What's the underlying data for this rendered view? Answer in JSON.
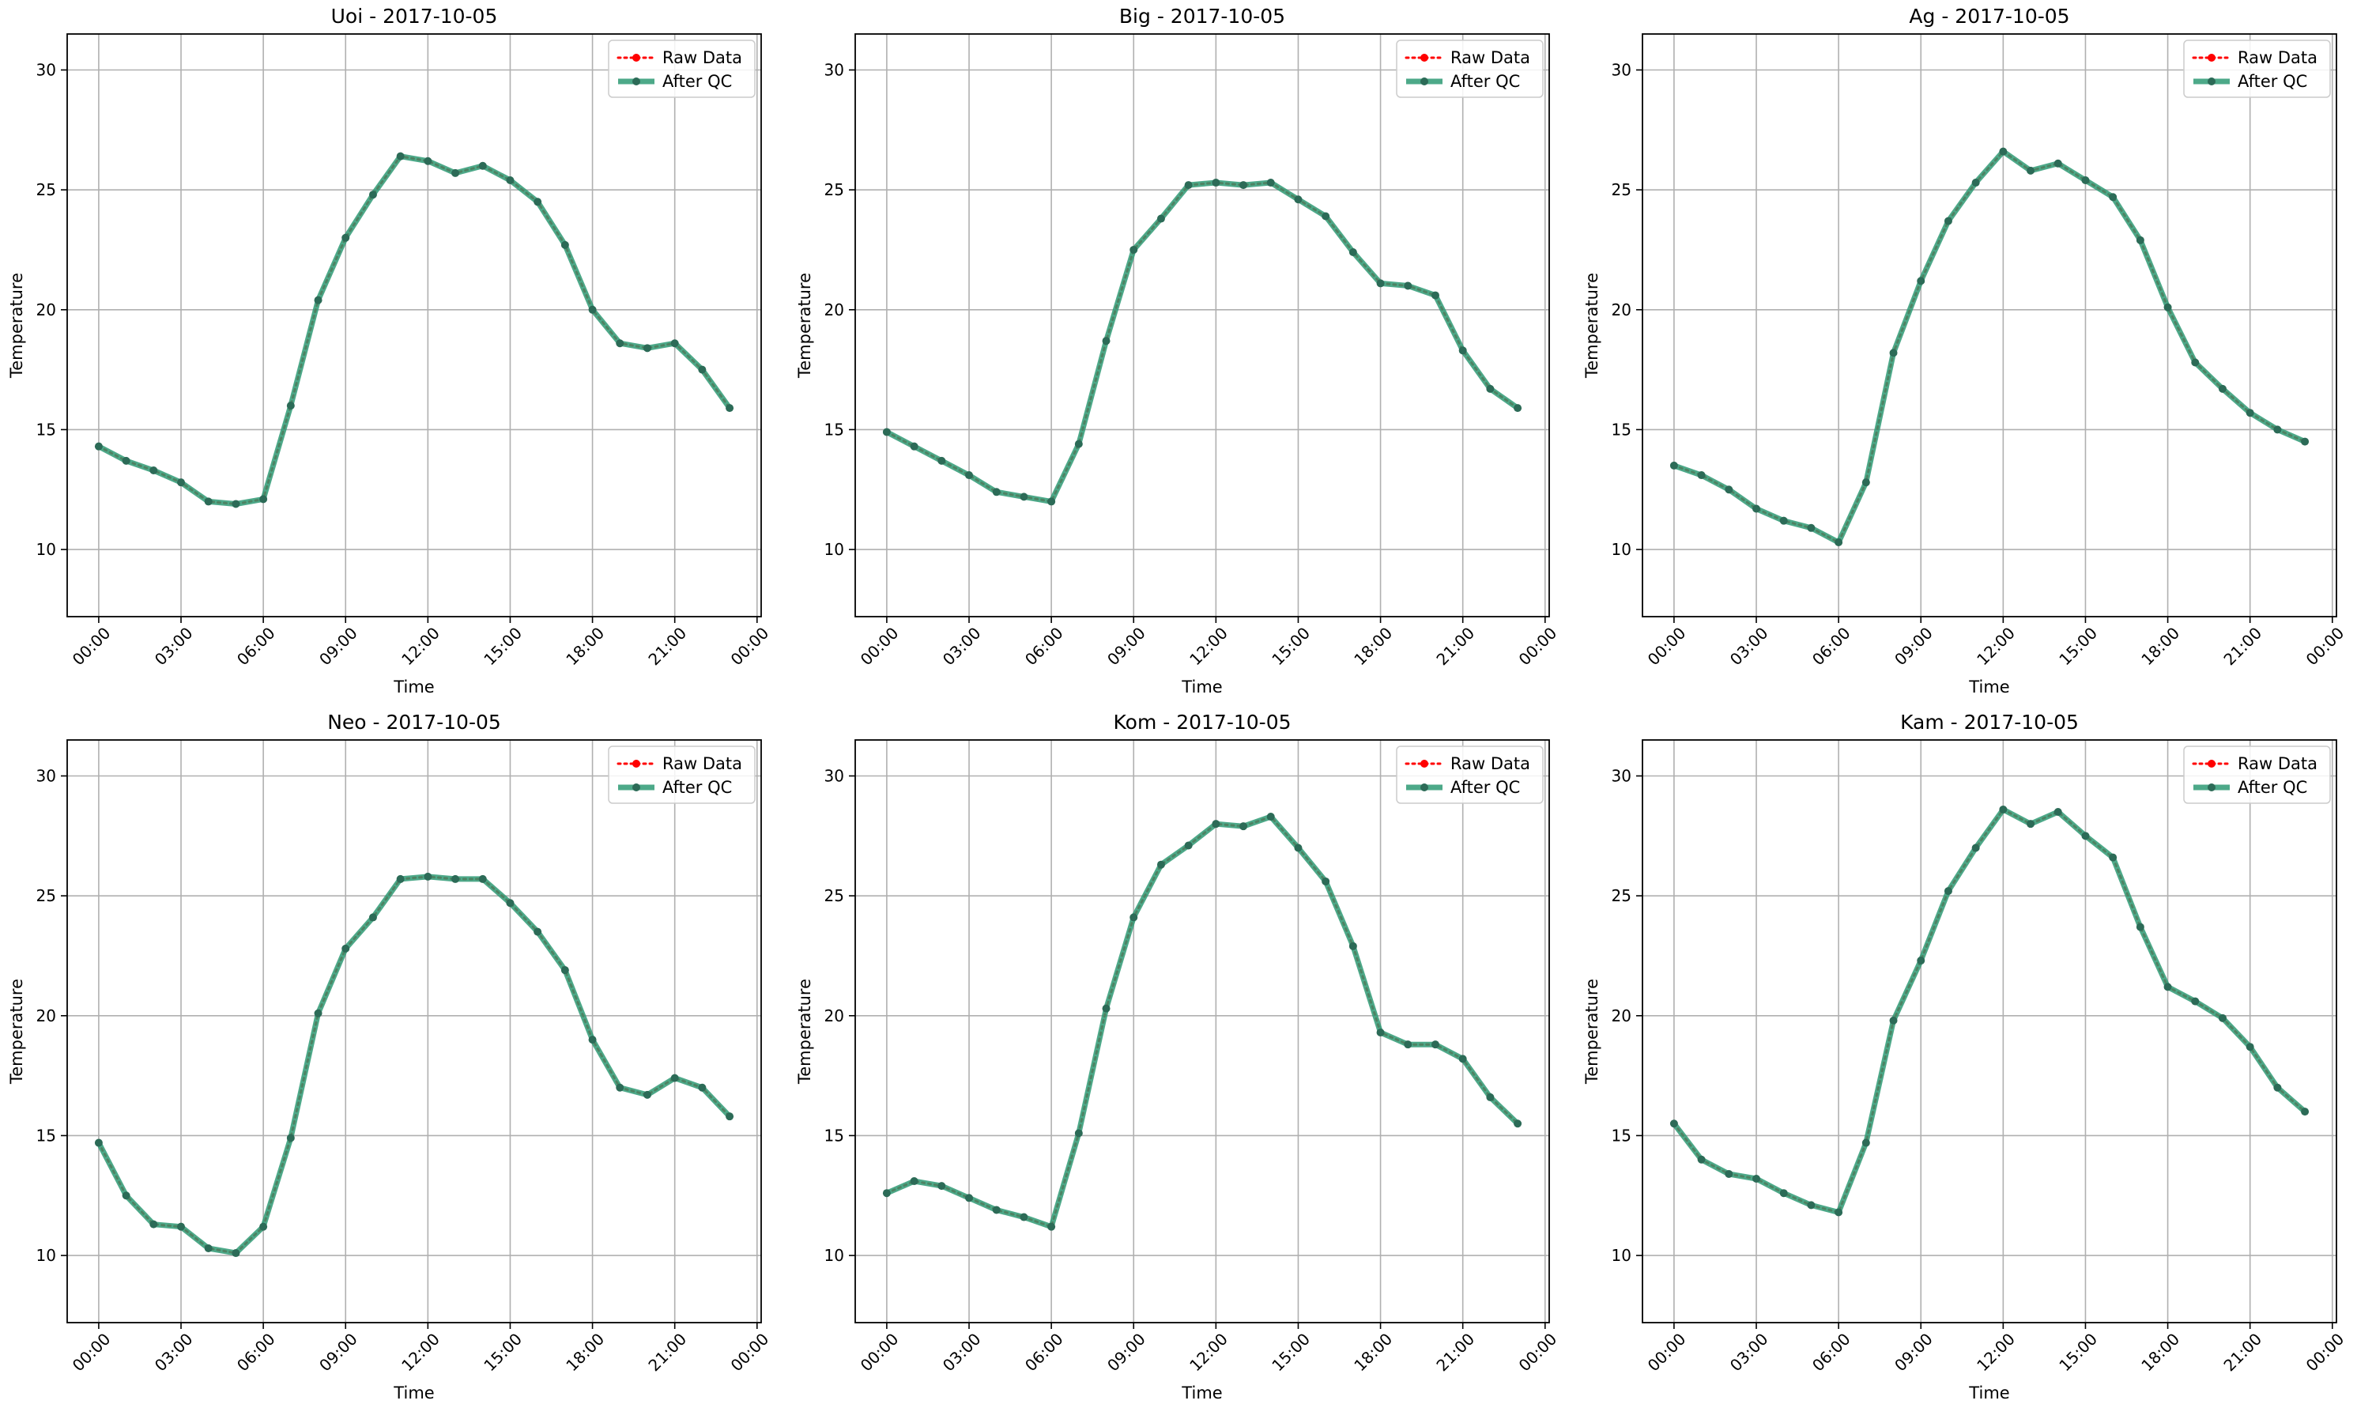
{
  "chart_data": [
    {
      "type": "line",
      "title": "Uoi - 2017-10-05",
      "xlabel": "Time",
      "ylabel": "Temperature",
      "x": [
        0,
        1,
        2,
        3,
        4,
        5,
        6,
        7,
        8,
        9,
        10,
        11,
        12,
        13,
        14,
        15,
        16,
        17,
        18,
        19,
        20,
        21,
        22,
        23
      ],
      "xticks": [
        "00:00",
        "03:00",
        "06:00",
        "09:00",
        "12:00",
        "15:00",
        "18:00",
        "21:00",
        "00:00"
      ],
      "yticks": [
        10,
        15,
        20,
        25,
        30
      ],
      "ylim": [
        7.2,
        31.5
      ],
      "grid": true,
      "legend_position": "top-right",
      "series": [
        {
          "name": "Raw Data",
          "color": "#ff0000",
          "style": "dotted-markers",
          "values": [
            14.3,
            13.7,
            13.3,
            12.8,
            12.0,
            11.9,
            12.1,
            16.0,
            20.4,
            23.0,
            24.8,
            26.4,
            26.2,
            25.7,
            26.0,
            25.4,
            24.5,
            22.7,
            20.0,
            18.6,
            18.4,
            18.6,
            17.5,
            15.9
          ]
        },
        {
          "name": "After QC",
          "color": "#2e9a74",
          "style": "solid-markers",
          "values": [
            14.3,
            13.7,
            13.3,
            12.8,
            12.0,
            11.9,
            12.1,
            16.0,
            20.4,
            23.0,
            24.8,
            26.4,
            26.2,
            25.7,
            26.0,
            25.4,
            24.5,
            22.7,
            20.0,
            18.6,
            18.4,
            18.6,
            17.5,
            15.9
          ]
        }
      ]
    },
    {
      "type": "line",
      "title": "Big - 2017-10-05",
      "xlabel": "Time",
      "ylabel": "Temperature",
      "x": [
        0,
        1,
        2,
        3,
        4,
        5,
        6,
        7,
        8,
        9,
        10,
        11,
        12,
        13,
        14,
        15,
        16,
        17,
        18,
        19,
        20,
        21,
        22,
        23
      ],
      "xticks": [
        "00:00",
        "03:00",
        "06:00",
        "09:00",
        "12:00",
        "15:00",
        "18:00",
        "21:00",
        "00:00"
      ],
      "yticks": [
        10,
        15,
        20,
        25,
        30
      ],
      "ylim": [
        7.2,
        31.5
      ],
      "grid": true,
      "legend_position": "top-right",
      "series": [
        {
          "name": "Raw Data",
          "color": "#ff0000",
          "style": "dotted-markers",
          "values": [
            14.9,
            14.3,
            13.7,
            13.1,
            12.4,
            12.2,
            12.0,
            14.4,
            18.7,
            22.5,
            23.8,
            25.2,
            25.3,
            25.2,
            25.3,
            24.6,
            23.9,
            22.4,
            21.1,
            21.0,
            20.6,
            18.3,
            16.7,
            15.9
          ]
        },
        {
          "name": "After QC",
          "color": "#2e9a74",
          "style": "solid-markers",
          "values": [
            14.9,
            14.3,
            13.7,
            13.1,
            12.4,
            12.2,
            12.0,
            14.4,
            18.7,
            22.5,
            23.8,
            25.2,
            25.3,
            25.2,
            25.3,
            24.6,
            23.9,
            22.4,
            21.1,
            21.0,
            20.6,
            18.3,
            16.7,
            15.9
          ]
        }
      ]
    },
    {
      "type": "line",
      "title": "Ag - 2017-10-05",
      "xlabel": "Time",
      "ylabel": "Temperature",
      "x": [
        0,
        1,
        2,
        3,
        4,
        5,
        6,
        7,
        8,
        9,
        10,
        11,
        12,
        13,
        14,
        15,
        16,
        17,
        18,
        19,
        20,
        21,
        22,
        23
      ],
      "xticks": [
        "00:00",
        "03:00",
        "06:00",
        "09:00",
        "12:00",
        "15:00",
        "18:00",
        "21:00",
        "00:00"
      ],
      "yticks": [
        10,
        15,
        20,
        25,
        30
      ],
      "ylim": [
        7.2,
        31.5
      ],
      "grid": true,
      "legend_position": "top-right",
      "series": [
        {
          "name": "Raw Data",
          "color": "#ff0000",
          "style": "dotted-markers",
          "values": [
            13.5,
            13.1,
            12.5,
            11.7,
            11.2,
            10.9,
            10.3,
            12.8,
            18.2,
            21.2,
            23.7,
            25.3,
            26.6,
            25.8,
            26.1,
            25.4,
            24.7,
            22.9,
            20.1,
            17.8,
            16.7,
            15.7,
            15.0,
            14.5
          ]
        },
        {
          "name": "After QC",
          "color": "#2e9a74",
          "style": "solid-markers",
          "values": [
            13.5,
            13.1,
            12.5,
            11.7,
            11.2,
            10.9,
            10.3,
            12.8,
            18.2,
            21.2,
            23.7,
            25.3,
            26.6,
            25.8,
            26.1,
            25.4,
            24.7,
            22.9,
            20.1,
            17.8,
            16.7,
            15.7,
            15.0,
            14.5
          ]
        }
      ]
    },
    {
      "type": "line",
      "title": "Neo - 2017-10-05",
      "xlabel": "Time",
      "ylabel": "Temperature",
      "x": [
        0,
        1,
        2,
        3,
        4,
        5,
        6,
        7,
        8,
        9,
        10,
        11,
        12,
        13,
        14,
        15,
        16,
        17,
        18,
        19,
        20,
        21,
        22,
        23
      ],
      "xticks": [
        "00:00",
        "03:00",
        "06:00",
        "09:00",
        "12:00",
        "15:00",
        "18:00",
        "21:00",
        "00:00"
      ],
      "yticks": [
        10,
        15,
        20,
        25,
        30
      ],
      "ylim": [
        7.2,
        31.5
      ],
      "grid": true,
      "legend_position": "top-right",
      "series": [
        {
          "name": "Raw Data",
          "color": "#ff0000",
          "style": "dotted-markers",
          "values": [
            14.7,
            12.5,
            11.3,
            11.2,
            10.3,
            10.1,
            11.2,
            14.9,
            20.1,
            22.8,
            24.1,
            25.7,
            25.8,
            25.7,
            25.7,
            24.7,
            23.5,
            21.9,
            19.0,
            17.0,
            16.7,
            17.4,
            17.0,
            15.8
          ]
        },
        {
          "name": "After QC",
          "color": "#2e9a74",
          "style": "solid-markers",
          "values": [
            14.7,
            12.5,
            11.3,
            11.2,
            10.3,
            10.1,
            11.2,
            14.9,
            20.1,
            22.8,
            24.1,
            25.7,
            25.8,
            25.7,
            25.7,
            24.7,
            23.5,
            21.9,
            19.0,
            17.0,
            16.7,
            17.4,
            17.0,
            15.8
          ]
        }
      ]
    },
    {
      "type": "line",
      "title": "Kom - 2017-10-05",
      "xlabel": "Time",
      "ylabel": "Temperature",
      "x": [
        0,
        1,
        2,
        3,
        4,
        5,
        6,
        7,
        8,
        9,
        10,
        11,
        12,
        13,
        14,
        15,
        16,
        17,
        18,
        19,
        20,
        21,
        22,
        23
      ],
      "xticks": [
        "00:00",
        "03:00",
        "06:00",
        "09:00",
        "12:00",
        "15:00",
        "18:00",
        "21:00",
        "00:00"
      ],
      "yticks": [
        10,
        15,
        20,
        25,
        30
      ],
      "ylim": [
        7.2,
        31.5
      ],
      "grid": true,
      "legend_position": "top-right",
      "series": [
        {
          "name": "Raw Data",
          "color": "#ff0000",
          "style": "dotted-markers",
          "values": [
            12.6,
            13.1,
            12.9,
            12.4,
            11.9,
            11.6,
            11.2,
            15.1,
            20.3,
            24.1,
            26.3,
            27.1,
            28.0,
            27.9,
            28.3,
            27.0,
            25.6,
            22.9,
            19.3,
            18.8,
            18.8,
            18.2,
            16.6,
            15.5
          ]
        },
        {
          "name": "After QC",
          "color": "#2e9a74",
          "style": "solid-markers",
          "values": [
            12.6,
            13.1,
            12.9,
            12.4,
            11.9,
            11.6,
            11.2,
            15.1,
            20.3,
            24.1,
            26.3,
            27.1,
            28.0,
            27.9,
            28.3,
            27.0,
            25.6,
            22.9,
            19.3,
            18.8,
            18.8,
            18.2,
            16.6,
            15.5
          ]
        }
      ]
    },
    {
      "type": "line",
      "title": "Kam - 2017-10-05",
      "xlabel": "Time",
      "ylabel": "Temperature",
      "x": [
        0,
        1,
        2,
        3,
        4,
        5,
        6,
        7,
        8,
        9,
        10,
        11,
        12,
        13,
        14,
        15,
        16,
        17,
        18,
        19,
        20,
        21,
        22,
        23
      ],
      "xticks": [
        "00:00",
        "03:00",
        "06:00",
        "09:00",
        "12:00",
        "15:00",
        "18:00",
        "21:00",
        "00:00"
      ],
      "yticks": [
        10,
        15,
        20,
        25,
        30
      ],
      "ylim": [
        7.2,
        31.5
      ],
      "grid": true,
      "legend_position": "top-right",
      "series": [
        {
          "name": "Raw Data",
          "color": "#ff0000",
          "style": "dotted-markers",
          "values": [
            15.5,
            14.0,
            13.4,
            13.2,
            12.6,
            12.1,
            11.8,
            14.7,
            19.8,
            22.3,
            25.2,
            27.0,
            28.6,
            28.0,
            28.5,
            27.5,
            26.6,
            23.7,
            21.2,
            20.6,
            19.9,
            18.7,
            17.0,
            16.0
          ]
        },
        {
          "name": "After QC",
          "color": "#2e9a74",
          "style": "solid-markers",
          "values": [
            15.5,
            14.0,
            13.4,
            13.2,
            12.6,
            12.1,
            11.8,
            14.7,
            19.8,
            22.3,
            25.2,
            27.0,
            28.6,
            28.0,
            28.5,
            27.5,
            26.6,
            23.7,
            21.2,
            20.6,
            19.9,
            18.7,
            17.0,
            16.0
          ]
        }
      ]
    }
  ]
}
